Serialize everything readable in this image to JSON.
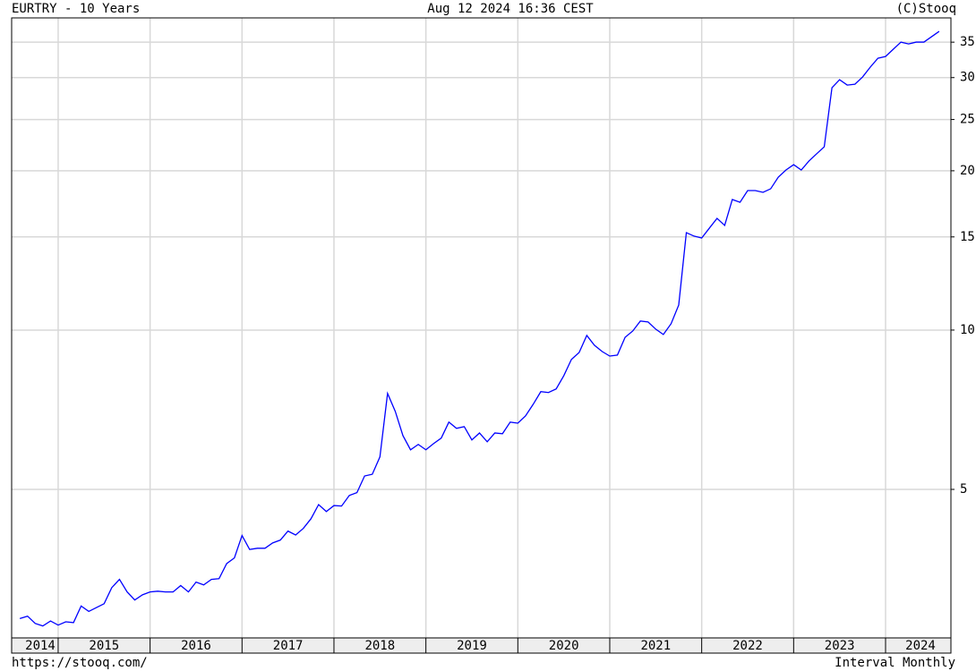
{
  "chart_data": {
    "type": "line",
    "title": "EURTRY - 10 Years",
    "subtitle": "Aug 12 2024 16:36 CEST",
    "source": "(C)Stooq",
    "url": "https://stooq.com/",
    "interval": "Interval Monthly",
    "color": "#0000ff",
    "log_scale": true,
    "grid": true,
    "x": [
      2014.583,
      2014.667,
      2014.75,
      2014.833,
      2014.917,
      2015,
      2015.083,
      2015.167,
      2015.25,
      2015.333,
      2015.417,
      2015.5,
      2015.583,
      2015.667,
      2015.75,
      2015.833,
      2015.917,
      2016,
      2016.083,
      2016.167,
      2016.25,
      2016.333,
      2016.417,
      2016.5,
      2016.583,
      2016.667,
      2016.75,
      2016.833,
      2016.917,
      2017,
      2017.083,
      2017.167,
      2017.25,
      2017.333,
      2017.417,
      2017.5,
      2017.583,
      2017.667,
      2017.75,
      2017.833,
      2017.917,
      2018,
      2018.083,
      2018.167,
      2018.25,
      2018.333,
      2018.417,
      2018.5,
      2018.583,
      2018.667,
      2018.75,
      2018.833,
      2018.917,
      2019,
      2019.083,
      2019.167,
      2019.25,
      2019.333,
      2019.417,
      2019.5,
      2019.583,
      2019.667,
      2019.75,
      2019.833,
      2019.917,
      2020,
      2020.083,
      2020.167,
      2020.25,
      2020.333,
      2020.417,
      2020.5,
      2020.583,
      2020.667,
      2020.75,
      2020.833,
      2020.917,
      2021,
      2021.083,
      2021.167,
      2021.25,
      2021.333,
      2021.417,
      2021.5,
      2021.583,
      2021.667,
      2021.75,
      2021.833,
      2021.917,
      2022,
      2022.083,
      2022.167,
      2022.25,
      2022.333,
      2022.417,
      2022.5,
      2022.583,
      2022.667,
      2022.75,
      2022.833,
      2022.917,
      2023,
      2023.083,
      2023.167,
      2023.25,
      2023.333,
      2023.417,
      2023.5,
      2023.583,
      2023.667,
      2023.75,
      2023.833,
      2023.917,
      2024,
      2024.083,
      2024.167,
      2024.25,
      2024.333,
      2024.417,
      2024.5,
      2024.583
    ],
    "values": [
      2.85,
      2.88,
      2.79,
      2.76,
      2.82,
      2.77,
      2.81,
      2.8,
      3.01,
      2.94,
      2.99,
      3.04,
      3.26,
      3.38,
      3.2,
      3.09,
      3.16,
      3.2,
      3.21,
      3.2,
      3.2,
      3.29,
      3.2,
      3.34,
      3.3,
      3.38,
      3.39,
      3.62,
      3.71,
      4.09,
      3.85,
      3.87,
      3.87,
      3.96,
      4.01,
      4.17,
      4.1,
      4.22,
      4.4,
      4.68,
      4.54,
      4.66,
      4.65,
      4.87,
      4.93,
      5.3,
      5.34,
      5.76,
      7.59,
      7.02,
      6.32,
      5.94,
      6.08,
      5.94,
      6.1,
      6.25,
      6.7,
      6.52,
      6.57,
      6.2,
      6.39,
      6.15,
      6.39,
      6.37,
      6.7,
      6.67,
      6.88,
      7.24,
      7.65,
      7.62,
      7.74,
      8.2,
      8.8,
      9.07,
      9.77,
      9.36,
      9.11,
      8.93,
      8.97,
      9.69,
      9.96,
      10.4,
      10.36,
      10.04,
      9.81,
      10.28,
      11.15,
      15.28,
      15.05,
      14.93,
      15.58,
      16.26,
      15.77,
      17.65,
      17.44,
      18.35,
      18.35,
      18.21,
      18.49,
      19.45,
      20.07,
      20.54,
      20.07,
      20.87,
      21.53,
      22.2,
      28.71,
      29.73,
      29.04,
      29.15,
      30.08,
      31.39,
      32.64,
      32.89,
      33.93,
      35.01,
      34.73,
      35.01,
      35.01,
      35.84,
      36.68
    ],
    "xlim": [
      2014.494,
      2024.711
    ],
    "xticks": [
      {
        "value": 2014.5,
        "label": "2014"
      },
      {
        "value": 2015.5,
        "label": "2015"
      },
      {
        "value": 2016.5,
        "label": "2016"
      },
      {
        "value": 2017.5,
        "label": "2017"
      },
      {
        "value": 2018.5,
        "label": "2018"
      },
      {
        "value": 2019.5,
        "label": "2019"
      },
      {
        "value": 2020.5,
        "label": "2020"
      },
      {
        "value": 2021.5,
        "label": "2021"
      },
      {
        "value": 2022.5,
        "label": "2022"
      },
      {
        "value": 2023.5,
        "label": "2023"
      },
      {
        "value": 2024.5,
        "label": "2024"
      }
    ],
    "ylim": [
      2.62,
      38.9
    ],
    "yticks": [
      5,
      10,
      15,
      20,
      25,
      30,
      35
    ]
  }
}
